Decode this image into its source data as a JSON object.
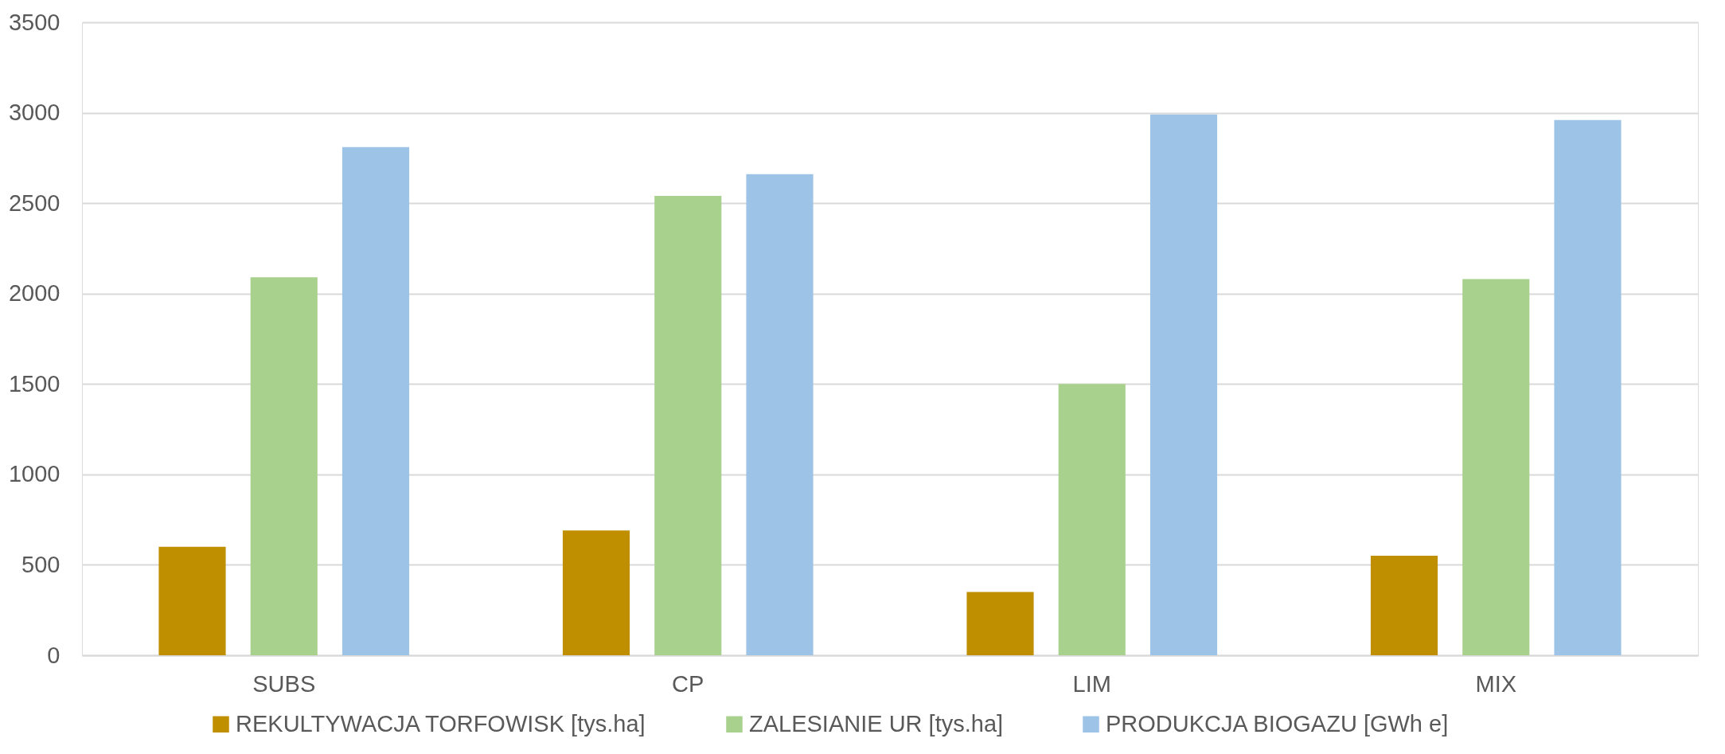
{
  "chart_data": {
    "type": "bar",
    "categories": [
      "SUBS",
      "CP",
      "LIM",
      "MIX"
    ],
    "series": [
      {
        "name": "REKULTYWACJA TORFOWISK [tys.ha]",
        "color": "#bf8f00",
        "values": [
          600,
          690,
          350,
          550
        ]
      },
      {
        "name": "ZALESIANIE UR [tys.ha]",
        "color": "#a9d18e",
        "values": [
          2090,
          2540,
          1500,
          2080
        ]
      },
      {
        "name": "PRODUKCJA BIOGAZU [GWh e]",
        "color": "#9dc3e6",
        "values": [
          2810,
          2660,
          2990,
          2960
        ]
      }
    ],
    "ylim": [
      0,
      3500
    ],
    "yticks": [
      0,
      500,
      1000,
      1500,
      2000,
      2500,
      3000,
      3500
    ],
    "grid": "y",
    "legend": "bottom"
  }
}
